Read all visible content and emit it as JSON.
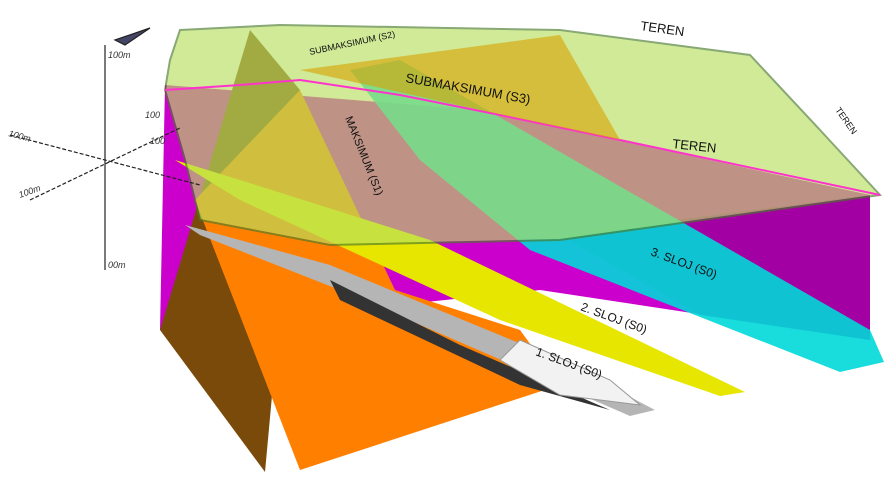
{
  "labels": {
    "teren_top": "TEREN",
    "teren_mid": "TEREN",
    "teren_side": "TEREN",
    "s2": "SUBMAKSIMUM (S2)",
    "s3": "SUBMAKSIMUM (S3)",
    "s1": "MAKSIMUM (S1)",
    "sloj3": "3. SLOJ (S0)",
    "sloj2": "2. SLOJ (S0)",
    "sloj1": "1. SLOJ (S0)"
  },
  "axes": {
    "z_top": "100m",
    "z_bottom": "00m",
    "x_left": "100m",
    "x_right": "100",
    "y_left": "100m",
    "y_right": "100"
  }
}
